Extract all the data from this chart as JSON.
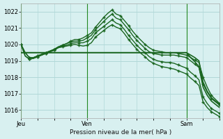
{
  "bg_color": "#d8f0f0",
  "grid_color": "#b0d8d8",
  "line_color": "#1a6620",
  "ylim": [
    1015.5,
    1022.5
  ],
  "yticks": [
    1016,
    1017,
    1018,
    1019,
    1020,
    1021,
    1022
  ],
  "day_labels": [
    "Jeu",
    "Ven",
    "Sam"
  ],
  "day_positions": [
    0,
    16,
    40
  ],
  "xlabel": "Pression niveau de la mer( hPa )",
  "total_points": 49,
  "series": [
    {
      "y": [
        1020.0,
        1019.5,
        1019.2,
        1019.2,
        1019.3,
        1019.4,
        1019.5,
        1019.6,
        1019.7,
        1019.85,
        1019.95,
        1020.05,
        1020.2,
        1020.3,
        1020.3,
        1020.4,
        1020.55,
        1020.7,
        1021.05,
        1021.35,
        1021.65,
        1021.9,
        1022.1,
        1021.85,
        1021.75,
        1021.45,
        1021.15,
        1020.8,
        1020.5,
        1020.25,
        1020.0,
        1019.8,
        1019.65,
        1019.6,
        1019.55,
        1019.5,
        1019.5,
        1019.5,
        1019.45,
        1019.4,
        1019.35,
        1019.2,
        1019.05,
        1018.9,
        1018.0,
        1017.4,
        1016.9,
        1016.65,
        1016.4
      ],
      "markers": true,
      "lw": 1.0
    },
    {
      "y": [
        1020.0,
        1019.5,
        1019.2,
        1019.2,
        1019.3,
        1019.4,
        1019.5,
        1019.6,
        1019.7,
        1019.85,
        1019.95,
        1020.05,
        1020.15,
        1020.2,
        1020.2,
        1020.25,
        1020.4,
        1020.55,
        1020.9,
        1021.15,
        1021.4,
        1021.65,
        1021.85,
        1021.6,
        1021.5,
        1021.2,
        1020.9,
        1020.55,
        1020.25,
        1020.0,
        1019.75,
        1019.55,
        1019.45,
        1019.4,
        1019.35,
        1019.35,
        1019.35,
        1019.35,
        1019.3,
        1019.25,
        1019.2,
        1019.0,
        1018.8,
        1018.6,
        1017.6,
        1017.1,
        1016.7,
        1016.5,
        1016.3
      ],
      "markers": true,
      "lw": 1.0
    },
    {
      "y": [
        1019.5,
        1019.5,
        1019.5,
        1019.5,
        1019.5,
        1019.5,
        1019.5,
        1019.5,
        1019.5,
        1019.5,
        1019.5,
        1019.5,
        1019.5,
        1019.5,
        1019.5,
        1019.5,
        1019.5,
        1019.5,
        1019.5,
        1019.5,
        1019.5,
        1019.5,
        1019.5,
        1019.5,
        1019.5,
        1019.5,
        1019.5,
        1019.5,
        1019.5,
        1019.5,
        1019.5,
        1019.5,
        1019.5,
        1019.5,
        1019.5,
        1019.5,
        1019.5,
        1019.5,
        1019.5,
        1019.5,
        1019.5,
        1019.35,
        1019.2,
        1019.0,
        1017.7,
        1017.15,
        1016.75,
        1016.55,
        1016.35
      ],
      "markers": false,
      "lw": 1.2
    },
    {
      "y": [
        1019.5,
        1019.5,
        1019.5,
        1019.5,
        1019.5,
        1019.5,
        1019.5,
        1019.5,
        1019.5,
        1019.5,
        1019.5,
        1019.5,
        1019.5,
        1019.5,
        1019.5,
        1019.5,
        1019.5,
        1019.5,
        1019.5,
        1019.5,
        1019.5,
        1019.5,
        1019.5,
        1019.5,
        1019.5,
        1019.5,
        1019.5,
        1019.5,
        1019.5,
        1019.5,
        1019.5,
        1019.5,
        1019.5,
        1019.5,
        1019.5,
        1019.5,
        1019.5,
        1019.5,
        1019.5,
        1019.5,
        1019.5,
        1019.2,
        1018.95,
        1018.65,
        1017.4,
        1016.9,
        1016.55,
        1016.35,
        1016.15
      ],
      "markers": false,
      "lw": 1.2
    },
    {
      "y": [
        1020.0,
        1019.3,
        1019.1,
        1019.15,
        1019.25,
        1019.35,
        1019.45,
        1019.55,
        1019.65,
        1019.8,
        1019.9,
        1019.95,
        1020.05,
        1020.1,
        1020.1,
        1020.1,
        1020.2,
        1020.35,
        1020.7,
        1020.9,
        1021.1,
        1021.3,
        1021.5,
        1021.3,
        1021.2,
        1020.9,
        1020.55,
        1020.25,
        1019.95,
        1019.7,
        1019.5,
        1019.25,
        1019.1,
        1019.0,
        1018.95,
        1018.9,
        1018.9,
        1018.85,
        1018.75,
        1018.65,
        1018.55,
        1018.3,
        1018.1,
        1017.85,
        1016.8,
        1016.4,
        1016.1,
        1015.95,
        1015.8
      ],
      "markers": true,
      "lw": 1.0
    },
    {
      "y": [
        1020.0,
        1019.3,
        1019.1,
        1019.15,
        1019.25,
        1019.35,
        1019.45,
        1019.55,
        1019.65,
        1019.8,
        1019.85,
        1019.9,
        1019.95,
        1020.0,
        1019.95,
        1019.9,
        1019.95,
        1020.1,
        1020.45,
        1020.65,
        1020.85,
        1021.05,
        1021.2,
        1021.05,
        1020.95,
        1020.65,
        1020.3,
        1020.0,
        1019.7,
        1019.45,
        1019.25,
        1019.0,
        1018.85,
        1018.75,
        1018.65,
        1018.6,
        1018.55,
        1018.5,
        1018.4,
        1018.3,
        1018.2,
        1017.95,
        1017.75,
        1017.5,
        1016.5,
        1016.15,
        1015.9,
        1015.75,
        1015.6
      ],
      "markers": true,
      "lw": 1.0
    }
  ],
  "marker_size": 3.5,
  "marker_interval": 2
}
